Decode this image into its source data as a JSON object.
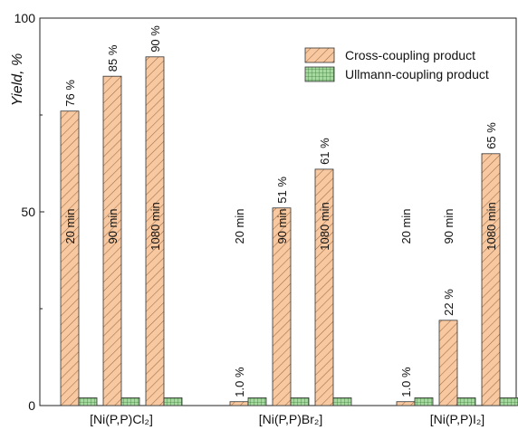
{
  "chart_data": {
    "type": "bar",
    "ylabel": "Yield, %",
    "ylim": [
      0,
      100
    ],
    "yticks": [
      0,
      50,
      100
    ],
    "xlabel": "",
    "title": "",
    "legend_position": "top-right",
    "grid": false,
    "categories": [
      "[Ni(P,P)Cl₂]",
      "[Ni(P,P)Br₂]",
      "[Ni(P,P)I₂]"
    ],
    "times": [
      "20 min",
      "90 min",
      "1080 min"
    ],
    "series": [
      {
        "name": "Cross-coupling product",
        "pattern": "diagonal-hatch",
        "color": "#f7c49a",
        "values": [
          [
            76,
            85,
            90
          ],
          [
            1.0,
            51,
            61
          ],
          [
            1.0,
            22,
            65
          ]
        ],
        "labels": [
          [
            "76 %",
            "85 %",
            "90 %"
          ],
          [
            "1.0 %",
            "51 %",
            "61 %"
          ],
          [
            "1.0 %",
            "22 %",
            "65 %"
          ]
        ]
      },
      {
        "name": "Ullmann-coupling product",
        "pattern": "grid",
        "color": "#9fd49a",
        "values": [
          [
            2,
            2,
            2
          ],
          [
            2,
            2,
            2
          ],
          [
            2,
            2,
            2
          ]
        ]
      }
    ]
  }
}
